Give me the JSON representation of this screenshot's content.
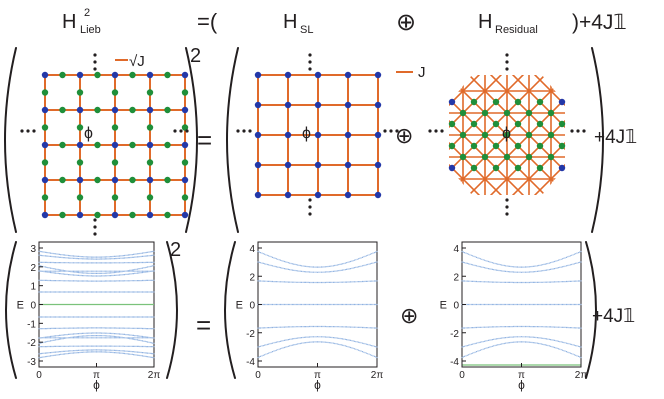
{
  "header": {
    "h": "H",
    "lieb_sub": "Lieb",
    "sup2": "2",
    "equals_paren": "=(",
    "h_sl_main": "H",
    "h_sl_sub": "SL",
    "oplus": "⊕",
    "h_res_main": "H",
    "h_res_sub": "Residual",
    "close_plus": ")+4J𝟙"
  },
  "row1": {
    "legend_sqrtj": "√J",
    "legend_j": "J",
    "phi": "ϕ",
    "square": "2",
    "equals": "=",
    "oplus": "⊕",
    "plus4j": "+4J𝟙",
    "colors": {
      "bond": "#e06a2a",
      "corner_site": "#2338a8",
      "edge_site": "#1f8f3a",
      "spectrum": "#6f9bd8"
    }
  },
  "row2": {
    "square": "2",
    "equals": "=",
    "oplus": "⊕",
    "plus4j": "+4J𝟙",
    "left_panel": {
      "ylabel": "E",
      "yticks": [
        "3",
        "2",
        "1",
        "0",
        "-1",
        "-2",
        "-3"
      ],
      "xticks": [
        "0",
        "π",
        "2π"
      ],
      "xlabel": "ϕ"
    },
    "middle_panel": {
      "ylabel": "E",
      "yticks": [
        "4",
        "2",
        "0",
        "-2",
        "-4"
      ],
      "xticks": [
        "0",
        "π",
        "2π"
      ],
      "xlabel": "ϕ"
    },
    "right_panel": {
      "ylabel": "E",
      "yticks": [
        "4",
        "2",
        "0",
        "-2",
        "-4"
      ],
      "xticks": [
        "0",
        "π",
        "2π"
      ],
      "xlabel": "ϕ"
    }
  }
}
